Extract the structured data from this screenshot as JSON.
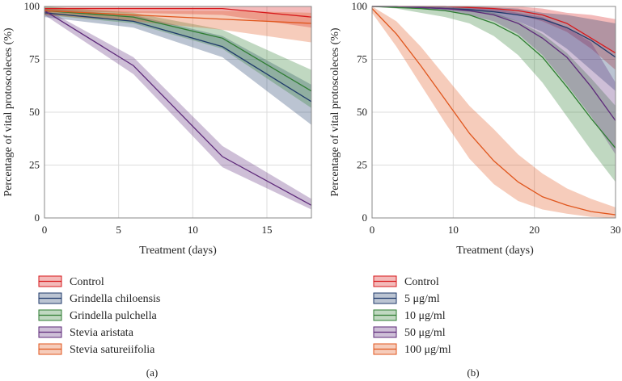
{
  "chart_data": [
    {
      "type": "line",
      "panel_label": "(a)",
      "xlabel": "Treatment (days)",
      "ylabel": "Percentage of vital protoscoleces (%)",
      "xlim": [
        0,
        18
      ],
      "ylim": [
        0,
        100
      ],
      "xticks": [
        0,
        5,
        10,
        15
      ],
      "yticks": [
        0,
        25,
        50,
        75,
        100
      ],
      "series": [
        {
          "name": "Control",
          "color": "#d7191c",
          "x": [
            0,
            6,
            12,
            18
          ],
          "values": [
            99,
            99,
            99,
            95
          ],
          "lower": [
            98,
            97,
            96,
            90
          ],
          "upper": [
            100,
            100,
            100,
            100
          ]
        },
        {
          "name": "Grindella chiloensis",
          "color": "#1f3a6b",
          "x": [
            0,
            6,
            12,
            18
          ],
          "values": [
            97,
            93,
            81,
            55
          ],
          "lower": [
            95,
            90,
            76,
            44
          ],
          "upper": [
            99,
            96,
            86,
            63
          ]
        },
        {
          "name": "Grindella pulchella",
          "color": "#2e7d32",
          "x": [
            0,
            6,
            12,
            18
          ],
          "values": [
            98,
            95,
            85,
            60
          ],
          "lower": [
            96,
            92,
            80,
            52
          ],
          "upper": [
            100,
            97,
            89,
            70
          ]
        },
        {
          "name": "Stevia aristata",
          "color": "#5e2a7a",
          "x": [
            0,
            6,
            12,
            18
          ],
          "values": [
            98,
            72,
            29,
            6
          ],
          "lower": [
            96,
            68,
            24,
            4
          ],
          "upper": [
            99,
            76,
            34,
            9
          ]
        },
        {
          "name": "Stevia satureiifolia",
          "color": "#e0561d",
          "x": [
            0,
            6,
            12,
            18
          ],
          "values": [
            98,
            96,
            94,
            92
          ],
          "lower": [
            96,
            93,
            89,
            83
          ],
          "upper": [
            99,
            98,
            98,
            97
          ]
        }
      ]
    },
    {
      "type": "line",
      "panel_label": "(b)",
      "xlabel": "Treatment (days)",
      "ylabel": "Percentage of vital protoscoleces (%)",
      "xlim": [
        0,
        30
      ],
      "ylim": [
        0,
        100
      ],
      "xticks": [
        0,
        10,
        20,
        30
      ],
      "yticks": [
        0,
        25,
        50,
        75,
        100
      ],
      "series": [
        {
          "name": "Control",
          "color": "#d7191c",
          "x": [
            0,
            3,
            6,
            9,
            12,
            15,
            18,
            21,
            24,
            27,
            30
          ],
          "values": [
            100,
            100,
            100,
            100,
            99.5,
            99,
            98,
            96,
            92,
            85,
            78
          ],
          "lower": [
            100,
            99.5,
            99,
            99,
            98.5,
            97.5,
            96,
            93,
            88,
            80,
            70
          ],
          "upper": [
            100,
            100,
            100,
            100,
            100,
            100,
            100,
            99,
            97,
            96,
            94
          ]
        },
        {
          "name": "5 μg/ml",
          "color": "#1f3a6b",
          "x": [
            0,
            3,
            6,
            9,
            12,
            15,
            18,
            21,
            24,
            27,
            30
          ],
          "values": [
            100,
            100,
            99.5,
            99,
            98.5,
            97.5,
            96,
            94,
            90,
            84,
            76
          ],
          "lower": [
            100,
            99.5,
            99,
            98.5,
            97.5,
            96,
            93,
            88,
            80,
            70,
            60
          ],
          "upper": [
            100,
            100,
            100,
            100,
            100,
            99.5,
            99,
            97,
            96,
            94,
            92
          ]
        },
        {
          "name": "10 μg/ml",
          "color": "#2e7d32",
          "x": [
            0,
            3,
            6,
            9,
            12,
            15,
            18,
            21,
            24,
            27,
            30
          ],
          "values": [
            100,
            99.5,
            99,
            98,
            96,
            92,
            86,
            76,
            62,
            47,
            33
          ],
          "lower": [
            100,
            99,
            97,
            95,
            92,
            86,
            77,
            64,
            48,
            32,
            17
          ],
          "upper": [
            100,
            100,
            100,
            99.5,
            99,
            97,
            93,
            87,
            78,
            66,
            53
          ]
        },
        {
          "name": "50 μg/ml",
          "color": "#5e2a7a",
          "x": [
            0,
            3,
            6,
            9,
            12,
            15,
            18,
            21,
            24,
            27,
            30
          ],
          "values": [
            100,
            100,
            99.5,
            99,
            98,
            96,
            92,
            85,
            76,
            62,
            46
          ],
          "lower": [
            100,
            99.5,
            99,
            98,
            96,
            93,
            87,
            77,
            63,
            48,
            30
          ],
          "upper": [
            100,
            100,
            100,
            100,
            99.5,
            99,
            97,
            95,
            90,
            83,
            64
          ]
        },
        {
          "name": "100 μg/ml",
          "color": "#e0561d",
          "x": [
            0,
            3,
            6,
            9,
            12,
            15,
            18,
            21,
            24,
            27,
            30
          ],
          "values": [
            99,
            87,
            72,
            56,
            40,
            27,
            17,
            10,
            6,
            3,
            1.5
          ],
          "lower": [
            97,
            81,
            63,
            45,
            28,
            16,
            8,
            4,
            2,
            0.5,
            0
          ],
          "upper": [
            100,
            93,
            81,
            67,
            53,
            42,
            30,
            21,
            14,
            9,
            5
          ]
        }
      ]
    }
  ]
}
